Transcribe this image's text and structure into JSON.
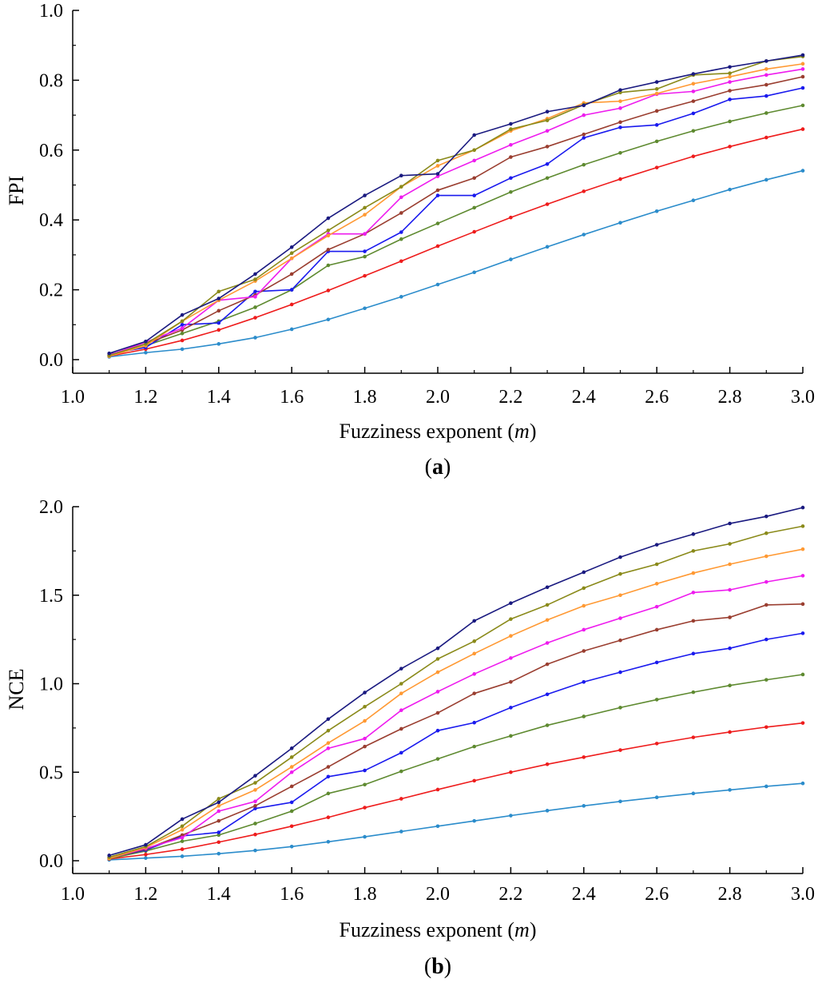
{
  "chart_data": [
    {
      "type": "line",
      "panel_label": "(a)",
      "panel_letter": "a",
      "xlabel": "Fuzziness exponent",
      "xlabel_var": "m",
      "ylabel": "FPI",
      "xlim": [
        1.0,
        3.0
      ],
      "ylim": [
        0.0,
        1.0
      ],
      "xticks": [
        1.0,
        1.2,
        1.4,
        1.6,
        1.8,
        2.0,
        2.2,
        2.4,
        2.6,
        2.8,
        3.0
      ],
      "yticks": [
        0.0,
        0.2,
        0.4,
        0.6,
        0.8,
        1.0
      ],
      "x": [
        1.1,
        1.2,
        1.3,
        1.4,
        1.5,
        1.6,
        1.7,
        1.8,
        1.9,
        2.0,
        2.1,
        2.2,
        2.3,
        2.4,
        2.5,
        2.6,
        2.7,
        2.8,
        2.9,
        3.0
      ],
      "series": [
        {
          "color": "#2b8ccb",
          "values": [
            0.008,
            0.02,
            0.03,
            0.045,
            0.063,
            0.087,
            0.115,
            0.147,
            0.18,
            0.215,
            0.25,
            0.287,
            0.323,
            0.358,
            0.392,
            0.425,
            0.456,
            0.487,
            0.515,
            0.541
          ]
        },
        {
          "color": "#ee1c1c",
          "values": [
            0.01,
            0.03,
            0.055,
            0.085,
            0.12,
            0.158,
            0.198,
            0.24,
            0.282,
            0.325,
            0.366,
            0.407,
            0.445,
            0.482,
            0.517,
            0.55,
            0.582,
            0.61,
            0.636,
            0.66
          ]
        },
        {
          "color": "#5e8a30",
          "values": [
            0.012,
            0.04,
            0.075,
            0.11,
            0.15,
            0.2,
            0.27,
            0.295,
            0.345,
            0.39,
            0.435,
            0.48,
            0.52,
            0.558,
            0.592,
            0.625,
            0.655,
            0.682,
            0.706,
            0.728
          ]
        },
        {
          "color": "#1a1aee",
          "values": [
            0.016,
            0.035,
            0.1,
            0.105,
            0.195,
            0.2,
            0.31,
            0.31,
            0.365,
            0.47,
            0.47,
            0.52,
            0.56,
            0.635,
            0.665,
            0.672,
            0.705,
            0.745,
            0.755,
            0.778
          ]
        },
        {
          "color": "#9a3e30",
          "values": [
            0.014,
            0.045,
            0.085,
            0.14,
            0.185,
            0.245,
            0.315,
            0.36,
            0.42,
            0.485,
            0.52,
            0.58,
            0.61,
            0.645,
            0.68,
            0.712,
            0.74,
            0.77,
            0.787,
            0.81
          ]
        },
        {
          "color": "#ee1cee",
          "values": [
            0.013,
            0.05,
            0.09,
            0.17,
            0.18,
            0.29,
            0.36,
            0.36,
            0.465,
            0.525,
            0.57,
            0.615,
            0.655,
            0.7,
            0.72,
            0.76,
            0.768,
            0.795,
            0.815,
            0.832
          ]
        },
        {
          "color": "#ff9933",
          "values": [
            0.01,
            0.04,
            0.11,
            0.17,
            0.225,
            0.29,
            0.355,
            0.415,
            0.495,
            0.555,
            0.6,
            0.655,
            0.69,
            0.735,
            0.74,
            0.762,
            0.79,
            0.81,
            0.832,
            0.847
          ]
        },
        {
          "color": "#8a8a1a",
          "values": [
            0.012,
            0.045,
            0.11,
            0.195,
            0.23,
            0.305,
            0.37,
            0.435,
            0.495,
            0.57,
            0.6,
            0.66,
            0.685,
            0.73,
            0.765,
            0.775,
            0.815,
            0.82,
            0.855,
            0.868
          ]
        },
        {
          "color": "#1a1a80",
          "values": [
            0.018,
            0.052,
            0.128,
            0.175,
            0.245,
            0.322,
            0.405,
            0.47,
            0.527,
            0.532,
            0.643,
            0.675,
            0.71,
            0.728,
            0.772,
            0.795,
            0.818,
            0.838,
            0.855,
            0.872
          ]
        }
      ]
    },
    {
      "type": "line",
      "panel_label": "(b)",
      "panel_letter": "b",
      "xlabel": "Fuzziness exponent",
      "xlabel_var": "m",
      "ylabel": "NCE",
      "xlim": [
        1.0,
        3.0
      ],
      "ylim": [
        0.0,
        2.0
      ],
      "xticks": [
        1.0,
        1.2,
        1.4,
        1.6,
        1.8,
        2.0,
        2.2,
        2.4,
        2.6,
        2.8,
        3.0
      ],
      "yticks": [
        0.0,
        0.5,
        1.0,
        1.5,
        2.0
      ],
      "x": [
        1.1,
        1.2,
        1.3,
        1.4,
        1.5,
        1.6,
        1.7,
        1.8,
        1.9,
        2.0,
        2.1,
        2.2,
        2.3,
        2.4,
        2.5,
        2.6,
        2.7,
        2.8,
        2.9,
        3.0
      ],
      "series": [
        {
          "color": "#2b8ccb",
          "values": [
            0.005,
            0.015,
            0.025,
            0.04,
            0.058,
            0.08,
            0.107,
            0.135,
            0.165,
            0.195,
            0.225,
            0.255,
            0.283,
            0.31,
            0.335,
            0.358,
            0.38,
            0.4,
            0.42,
            0.437
          ]
        },
        {
          "color": "#ee1c1c",
          "values": [
            0.01,
            0.035,
            0.065,
            0.105,
            0.148,
            0.195,
            0.245,
            0.3,
            0.35,
            0.402,
            0.452,
            0.5,
            0.545,
            0.585,
            0.625,
            0.662,
            0.697,
            0.727,
            0.755,
            0.778
          ]
        },
        {
          "color": "#5e8a30",
          "values": [
            0.012,
            0.055,
            0.11,
            0.145,
            0.21,
            0.28,
            0.38,
            0.43,
            0.505,
            0.575,
            0.645,
            0.705,
            0.765,
            0.815,
            0.865,
            0.91,
            0.952,
            0.99,
            1.022,
            1.052
          ]
        },
        {
          "color": "#1a1aee",
          "values": [
            0.018,
            0.06,
            0.14,
            0.16,
            0.295,
            0.33,
            0.475,
            0.51,
            0.61,
            0.735,
            0.78,
            0.865,
            0.94,
            1.01,
            1.065,
            1.12,
            1.17,
            1.2,
            1.25,
            1.285
          ]
        },
        {
          "color": "#9a3e30",
          "values": [
            0.015,
            0.065,
            0.145,
            0.225,
            0.31,
            0.42,
            0.53,
            0.645,
            0.745,
            0.835,
            0.945,
            1.01,
            1.11,
            1.185,
            1.245,
            1.305,
            1.355,
            1.375,
            1.445,
            1.45
          ]
        },
        {
          "color": "#ee1cee",
          "values": [
            0.014,
            0.07,
            0.13,
            0.28,
            0.335,
            0.5,
            0.635,
            0.69,
            0.85,
            0.955,
            1.055,
            1.145,
            1.23,
            1.305,
            1.37,
            1.435,
            1.515,
            1.53,
            1.575,
            1.61
          ]
        },
        {
          "color": "#ff9933",
          "values": [
            0.013,
            0.075,
            0.175,
            0.31,
            0.4,
            0.53,
            0.665,
            0.79,
            0.945,
            1.065,
            1.17,
            1.27,
            1.36,
            1.44,
            1.5,
            1.565,
            1.625,
            1.675,
            1.72,
            1.76
          ]
        },
        {
          "color": "#8a8a1a",
          "values": [
            0.02,
            0.08,
            0.195,
            0.35,
            0.44,
            0.585,
            0.735,
            0.87,
            1.0,
            1.14,
            1.24,
            1.365,
            1.445,
            1.54,
            1.62,
            1.675,
            1.75,
            1.79,
            1.85,
            1.89
          ]
        },
        {
          "color": "#1a1a80",
          "values": [
            0.03,
            0.09,
            0.235,
            0.33,
            0.48,
            0.635,
            0.8,
            0.95,
            1.085,
            1.2,
            1.355,
            1.455,
            1.545,
            1.63,
            1.715,
            1.785,
            1.845,
            1.905,
            1.945,
            1.995
          ]
        }
      ]
    }
  ]
}
